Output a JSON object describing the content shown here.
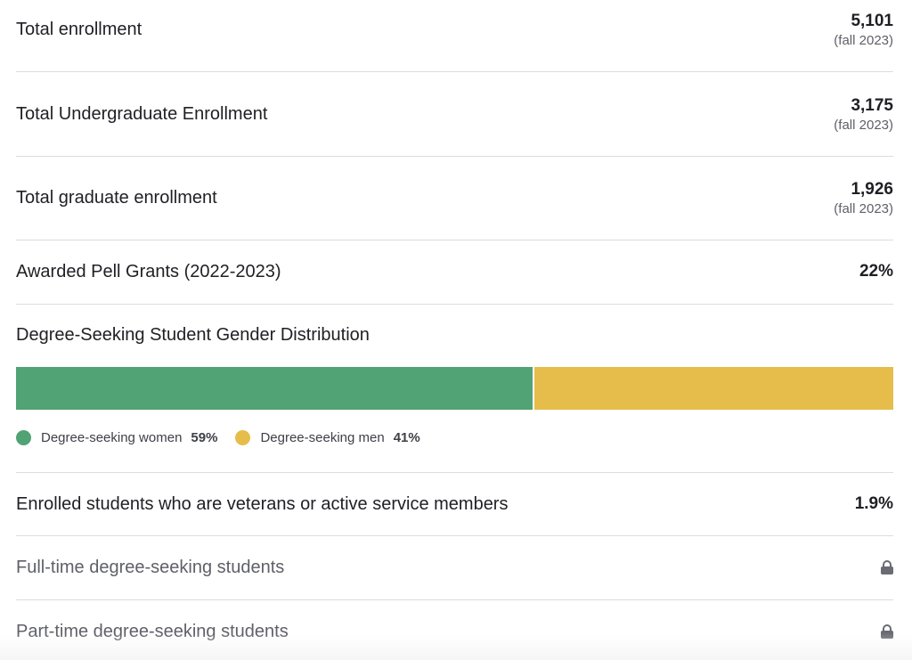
{
  "stats": [
    {
      "label": "Total enrollment",
      "value": "5,101",
      "note": "(fall 2023)"
    },
    {
      "label": "Total Undergraduate Enrollment",
      "value": "3,175",
      "note": "(fall 2023)"
    },
    {
      "label": "Total graduate enrollment",
      "value": "1,926",
      "note": "(fall 2023)"
    },
    {
      "label": "Awarded Pell Grants (2022-2023)",
      "value": "22%"
    }
  ],
  "gender": {
    "title": "Degree-Seeking Student Gender Distribution",
    "women": {
      "label": "Degree-seeking women",
      "pct": "59%",
      "fraction": 0.59,
      "color": "#51a274"
    },
    "men": {
      "label": "Degree-seeking men",
      "pct": "41%",
      "fraction": 0.41,
      "color": "#e6bd4b"
    }
  },
  "veterans": {
    "label": "Enrolled students who are veterans or active service members",
    "value": "1.9%"
  },
  "locked": [
    {
      "label": "Full-time degree-seeking students",
      "icon": "lock-icon"
    },
    {
      "label": "Part-time degree-seeking students",
      "icon": "lock-icon"
    }
  ]
}
